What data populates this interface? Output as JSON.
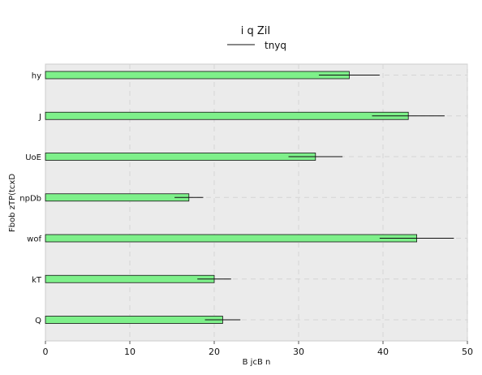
{
  "chart_data": {
    "type": "bar",
    "orientation": "horizontal",
    "title": "i q ZiI",
    "legend": {
      "label": "tnyq",
      "placement": "top-center",
      "marker": "line"
    },
    "xlabel": "B jcB n",
    "ylabel": "Fbob zTP(tcxD",
    "xlim": [
      0,
      50
    ],
    "xticks": [
      0,
      10,
      20,
      30,
      40,
      50
    ],
    "grid": true,
    "categories": [
      "hy",
      "J",
      "UoE",
      "npDb",
      "wof",
      "kT",
      "Q"
    ],
    "values": [
      36,
      43,
      32,
      17,
      44,
      20,
      21
    ],
    "errors": [
      3.6,
      4.3,
      3.2,
      1.7,
      4.4,
      2.0,
      2.1
    ],
    "colors": {
      "bar": "#7ef08a",
      "plot_bg": "#ebebeb",
      "grid": "#d4d4d4"
    }
  }
}
